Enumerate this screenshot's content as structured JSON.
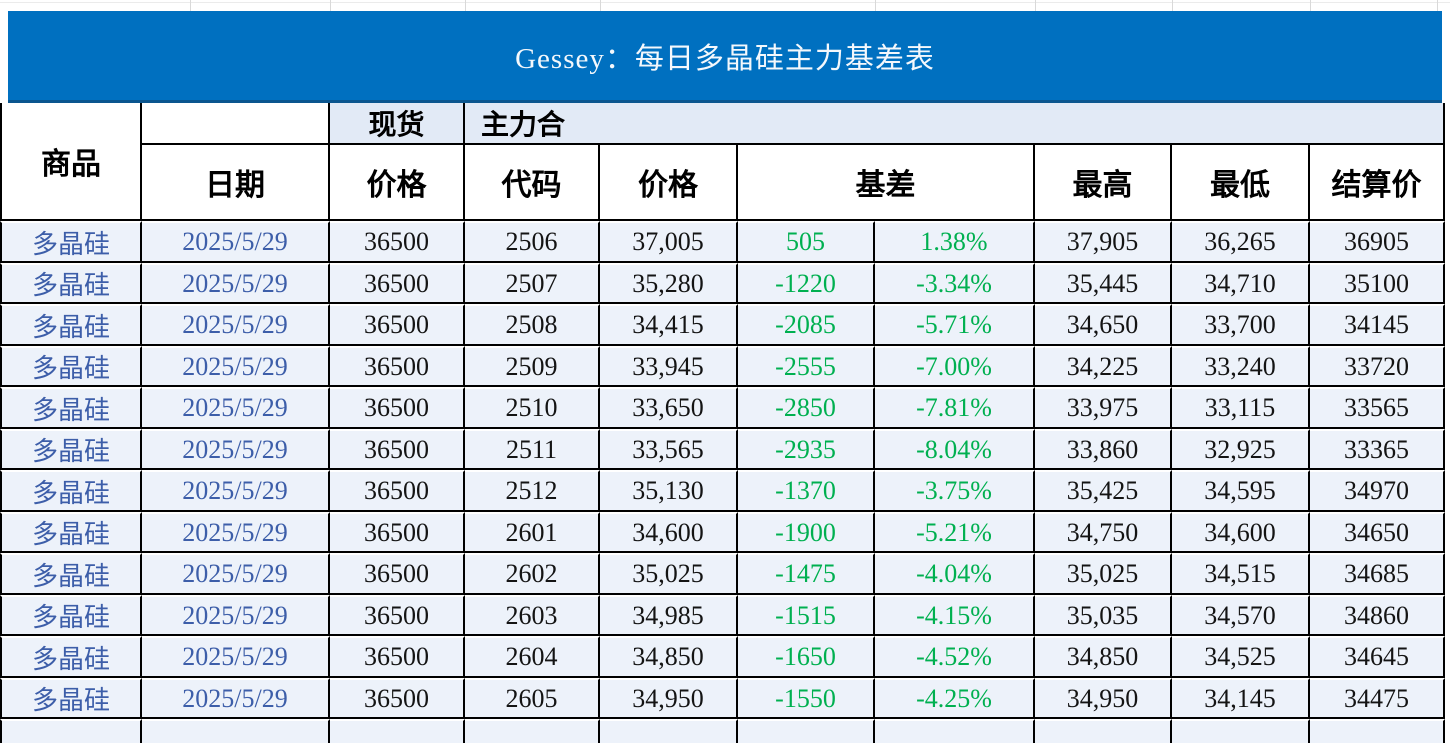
{
  "title": "Gessey：每日多晶硅主力基差表",
  "colors": {
    "title_bar_bg": "#0070C0",
    "title_text": "#FFFFFF",
    "header_group_bg": "#E2EAF6",
    "row_bg": "#EDF2FA",
    "commodity_date_text": "#3D5EA9",
    "basis_text": "#00B050",
    "grid_border": "#000000"
  },
  "header": {
    "commodity": "商品",
    "date": "日期",
    "spot_group": "现货",
    "spot_price": "价格",
    "main_contract_group": "主力合",
    "code": "代码",
    "price": "价格",
    "basis": "基差",
    "high": "最高",
    "low": "最低",
    "settlement": "结算价"
  },
  "rows": [
    {
      "commodity": "多晶硅",
      "date": "2025/5/29",
      "spot_price": "36500",
      "code": "2506",
      "price": "37,005",
      "basis": "505",
      "basis_pct": "1.38%",
      "high": "37,905",
      "low": "36,265",
      "settlement": "36905"
    },
    {
      "commodity": "多晶硅",
      "date": "2025/5/29",
      "spot_price": "36500",
      "code": "2507",
      "price": "35,280",
      "basis": "-1220",
      "basis_pct": "-3.34%",
      "high": "35,445",
      "low": "34,710",
      "settlement": "35100"
    },
    {
      "commodity": "多晶硅",
      "date": "2025/5/29",
      "spot_price": "36500",
      "code": "2508",
      "price": "34,415",
      "basis": "-2085",
      "basis_pct": "-5.71%",
      "high": "34,650",
      "low": "33,700",
      "settlement": "34145"
    },
    {
      "commodity": "多晶硅",
      "date": "2025/5/29",
      "spot_price": "36500",
      "code": "2509",
      "price": "33,945",
      "basis": "-2555",
      "basis_pct": "-7.00%",
      "high": "34,225",
      "low": "33,240",
      "settlement": "33720"
    },
    {
      "commodity": "多晶硅",
      "date": "2025/5/29",
      "spot_price": "36500",
      "code": "2510",
      "price": "33,650",
      "basis": "-2850",
      "basis_pct": "-7.81%",
      "high": "33,975",
      "low": "33,115",
      "settlement": "33565"
    },
    {
      "commodity": "多晶硅",
      "date": "2025/5/29",
      "spot_price": "36500",
      "code": "2511",
      "price": "33,565",
      "basis": "-2935",
      "basis_pct": "-8.04%",
      "high": "33,860",
      "low": "32,925",
      "settlement": "33365"
    },
    {
      "commodity": "多晶硅",
      "date": "2025/5/29",
      "spot_price": "36500",
      "code": "2512",
      "price": "35,130",
      "basis": "-1370",
      "basis_pct": "-3.75%",
      "high": "35,425",
      "low": "34,595",
      "settlement": "34970"
    },
    {
      "commodity": "多晶硅",
      "date": "2025/5/29",
      "spot_price": "36500",
      "code": "2601",
      "price": "34,600",
      "basis": "-1900",
      "basis_pct": "-5.21%",
      "high": "34,750",
      "low": "34,600",
      "settlement": "34650"
    },
    {
      "commodity": "多晶硅",
      "date": "2025/5/29",
      "spot_price": "36500",
      "code": "2602",
      "price": "35,025",
      "basis": "-1475",
      "basis_pct": "-4.04%",
      "high": "35,025",
      "low": "34,515",
      "settlement": "34685"
    },
    {
      "commodity": "多晶硅",
      "date": "2025/5/29",
      "spot_price": "36500",
      "code": "2603",
      "price": "34,985",
      "basis": "-1515",
      "basis_pct": "-4.15%",
      "high": "35,035",
      "low": "34,570",
      "settlement": "34860"
    },
    {
      "commodity": "多晶硅",
      "date": "2025/5/29",
      "spot_price": "36500",
      "code": "2604",
      "price": "34,850",
      "basis": "-1650",
      "basis_pct": "-4.52%",
      "high": "34,850",
      "low": "34,525",
      "settlement": "34645"
    },
    {
      "commodity": "多晶硅",
      "date": "2025/5/29",
      "spot_price": "36500",
      "code": "2605",
      "price": "34,950",
      "basis": "-1550",
      "basis_pct": "-4.25%",
      "high": "34,950",
      "low": "34,145",
      "settlement": "34475"
    }
  ]
}
